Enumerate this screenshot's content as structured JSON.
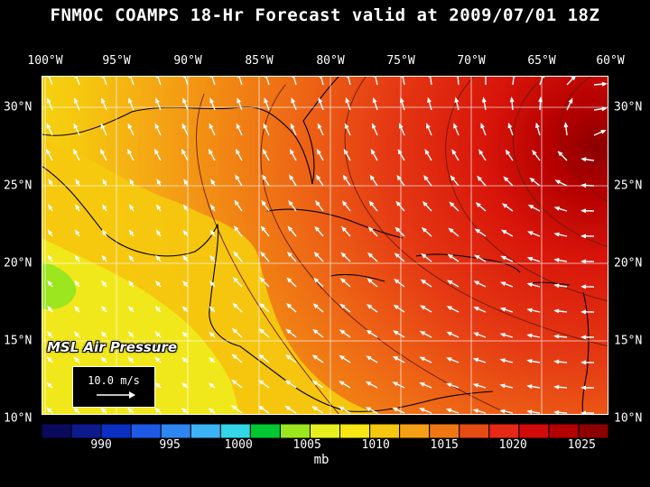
{
  "title": "FNMOC COAMPS 18-Hr Forecast valid at 2009/07/01 18Z",
  "lon_labels": [
    "100°W",
    "95°W",
    "90°W",
    "85°W",
    "80°W",
    "75°W",
    "70°W",
    "65°W",
    "60°W"
  ],
  "lat_labels": [
    "30°N",
    "25°N",
    "20°N",
    "15°N",
    "10°N"
  ],
  "panel_label": "MSL Air Pressure",
  "vector_scale_label": "10.0 m/s",
  "colorbar": {
    "ticks": [
      "990",
      "995",
      "1000",
      "1005",
      "1010",
      "1015",
      "1020",
      "1025"
    ],
    "unit": "mb",
    "colors": [
      "#0a0a5c",
      "#0c1a8c",
      "#0a2fc2",
      "#1f5ae6",
      "#2e86f0",
      "#3cb3f5",
      "#33d6e8",
      "#00c832",
      "#9be61e",
      "#e6f01e",
      "#f5e614",
      "#f5c80f",
      "#f5a014",
      "#f07814",
      "#e64b14",
      "#e62814",
      "#d20a0a",
      "#b40000",
      "#8c0000"
    ]
  },
  "map": {
    "lon_range": [
      -100,
      -60
    ],
    "lat_range": [
      10,
      32
    ],
    "high_center": "near 29°N 61°W"
  }
}
